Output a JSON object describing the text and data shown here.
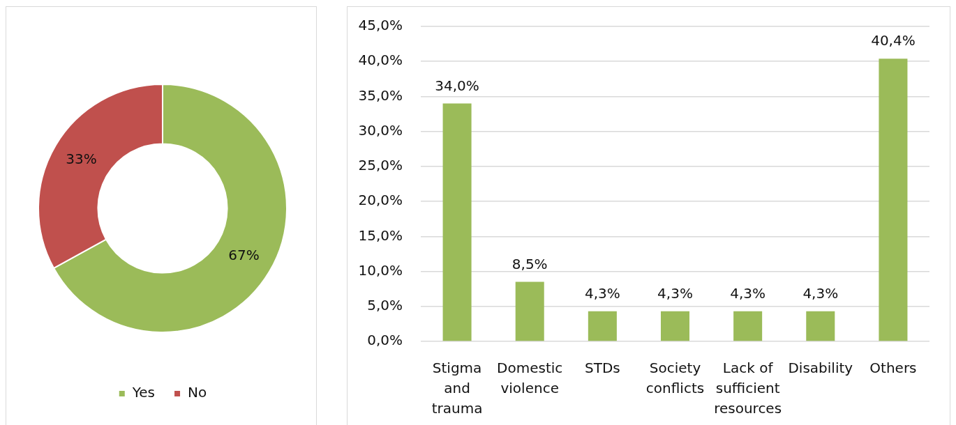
{
  "chart_data": [
    {
      "type": "donut",
      "categories": [
        "Yes",
        "No"
      ],
      "values": [
        67,
        33
      ],
      "colors": [
        "#9bbb59",
        "#c0504d"
      ],
      "value_labels": [
        "67%",
        "33%"
      ],
      "legend": "bottom"
    },
    {
      "type": "bar",
      "categories": [
        "Stigma and trauma",
        "Domestic violence",
        "STDs",
        "Society conflicts",
        "Lack of sufficient resources",
        "Disability",
        "Others"
      ],
      "values": [
        34.0,
        8.5,
        4.3,
        4.3,
        4.3,
        4.3,
        40.4
      ],
      "color": "#9bbb59",
      "value_labels": [
        "34,0%",
        "8,5%",
        "4,3%",
        "4,3%",
        "4,3%",
        "4,3%",
        "40,4%"
      ],
      "ylim": [
        0,
        45
      ],
      "yticks": [
        {
          "value": 0,
          "label": "0,0%"
        },
        {
          "value": 5,
          "label": "5,0%"
        },
        {
          "value": 10,
          "label": "10,0%"
        },
        {
          "value": 15,
          "label": "15,0%"
        },
        {
          "value": 20,
          "label": "20,0%"
        },
        {
          "value": 25,
          "label": "25,0%"
        },
        {
          "value": 30,
          "label": "30,0%"
        },
        {
          "value": 35,
          "label": "35,0%"
        },
        {
          "value": 40,
          "label": "40,0%"
        },
        {
          "value": 45,
          "label": "45,0%"
        }
      ],
      "grid": "y"
    }
  ]
}
